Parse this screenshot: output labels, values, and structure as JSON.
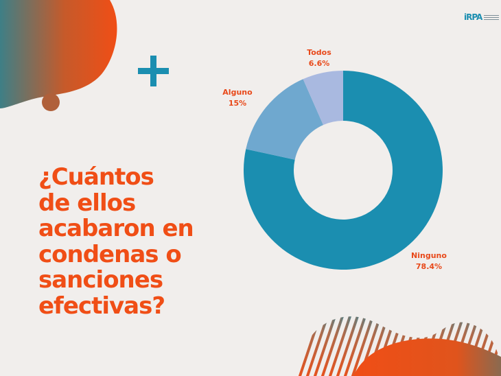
{
  "question": "¿Cuántos\nde ellos\nacabaron en\ncondenas o\nsanciones\nefectivas?",
  "logo": {
    "text": "iRPA"
  },
  "colors": {
    "background": "#f1eeec",
    "accent_orange": "#f04e16",
    "teal": "#1b8eb0"
  },
  "chart_data": {
    "type": "pie",
    "donut": true,
    "title": "",
    "slices": [
      {
        "label": "Ninguno",
        "value": 78.4,
        "display": "78.4%",
        "color": "#1b8eb0"
      },
      {
        "label": "Alguno",
        "value": 15,
        "display": "15%",
        "color": "#6fa8cf"
      },
      {
        "label": "Todos",
        "value": 6.6,
        "display": "6.6%",
        "color": "#a9b9e0"
      }
    ]
  }
}
